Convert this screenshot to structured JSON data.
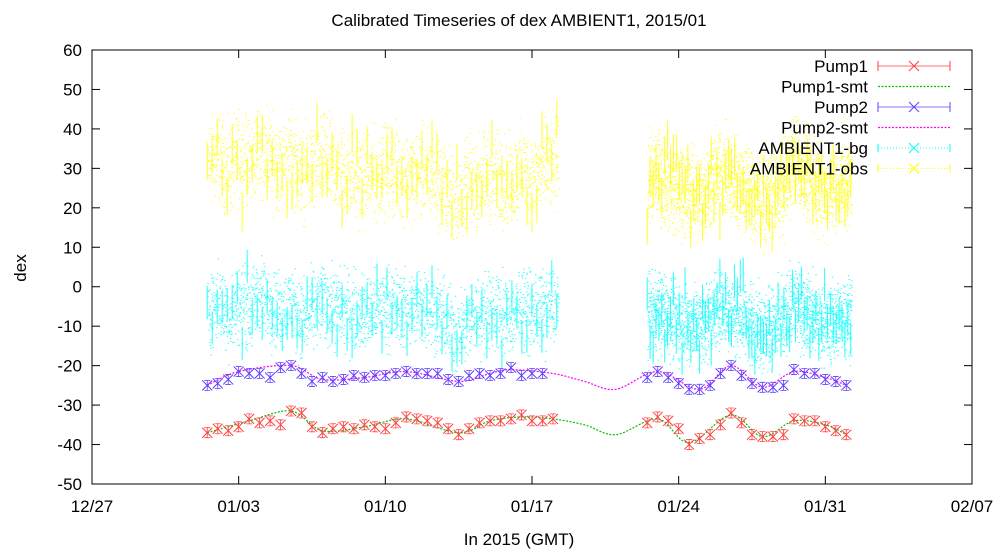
{
  "chart_data": {
    "type": "line",
    "title": "Calibrated Timeseries of dex AMBIENT1, 2015/01",
    "xlabel": "In 2015 (GMT)",
    "ylabel": "dex",
    "xlim": [
      "2014-12-27",
      "2015-02-07"
    ],
    "ylim": [
      -50,
      60
    ],
    "x_ticks": [
      "12/27",
      "01/03",
      "01/10",
      "01/17",
      "01/24",
      "01/31",
      "02/07"
    ],
    "y_ticks": [
      "60",
      "50",
      "40",
      "30",
      "20",
      "10",
      "0",
      "-10",
      "-20",
      "-30",
      "-40",
      "-50"
    ],
    "legend_position": "top-right",
    "colors": {
      "pump1": "#ff4040",
      "pump1_smt": "#00c000",
      "pump2": "#6040ff",
      "pump2_smt": "#ff00ff",
      "ambient_bg": "#00ffff",
      "ambient_obs": "#ffff00"
    },
    "series": [
      {
        "name": "Pump1",
        "style": "points-errorbars",
        "points": [
          [
            "2015-01-01T12",
            -37
          ],
          [
            "2015-01-02",
            -36
          ],
          [
            "2015-01-02T12",
            -36.5
          ],
          [
            "2015-01-03",
            -35.5
          ],
          [
            "2015-01-03T12",
            -33.5
          ],
          [
            "2015-01-04",
            -34.5
          ],
          [
            "2015-01-04T12",
            -34
          ],
          [
            "2015-01-05",
            -35
          ],
          [
            "2015-01-05T12",
            -31.5
          ],
          [
            "2015-01-06",
            -32
          ],
          [
            "2015-01-06T12",
            -35.5
          ],
          [
            "2015-01-07",
            -37
          ],
          [
            "2015-01-07T12",
            -36
          ],
          [
            "2015-01-08",
            -35.5
          ],
          [
            "2015-01-08T12",
            -36
          ],
          [
            "2015-01-09",
            -35
          ],
          [
            "2015-01-09T12",
            -35.5
          ],
          [
            "2015-01-10",
            -36
          ],
          [
            "2015-01-10T12",
            -34.5
          ],
          [
            "2015-01-11",
            -33
          ],
          [
            "2015-01-11T12",
            -33.5
          ],
          [
            "2015-01-12",
            -34
          ],
          [
            "2015-01-12T12",
            -34.5
          ],
          [
            "2015-01-13",
            -36
          ],
          [
            "2015-01-13T12",
            -37.5
          ],
          [
            "2015-01-14",
            -36
          ],
          [
            "2015-01-14T12",
            -34.5
          ],
          [
            "2015-01-15",
            -34
          ],
          [
            "2015-01-15T12",
            -34
          ],
          [
            "2015-01-16",
            -33.5
          ],
          [
            "2015-01-16T12",
            -32.5
          ],
          [
            "2015-01-17",
            -34
          ],
          [
            "2015-01-17T12",
            -34
          ],
          [
            "2015-01-18",
            -33.5
          ],
          [
            "2015-01-22T12",
            -34.5
          ],
          [
            "2015-01-23",
            -33
          ],
          [
            "2015-01-23T12",
            -34
          ],
          [
            "2015-01-24",
            -36
          ],
          [
            "2015-01-24T12",
            -40
          ],
          [
            "2015-01-25",
            -38.5
          ],
          [
            "2015-01-25T12",
            -37.5
          ],
          [
            "2015-01-26",
            -35
          ],
          [
            "2015-01-26T12",
            -32
          ],
          [
            "2015-01-27",
            -34.5
          ],
          [
            "2015-01-27T12",
            -37.5
          ],
          [
            "2015-01-28",
            -38
          ],
          [
            "2015-01-28T12",
            -38
          ],
          [
            "2015-01-29",
            -37.5
          ],
          [
            "2015-01-29T12",
            -33.5
          ],
          [
            "2015-01-30",
            -34
          ],
          [
            "2015-01-30T12",
            -34
          ],
          [
            "2015-01-31",
            -35.5
          ],
          [
            "2015-01-31T12",
            -36.5
          ],
          [
            "2015-02-01",
            -37.5
          ]
        ]
      },
      {
        "name": "Pump1-smt",
        "style": "line",
        "points": [
          [
            "2015-01-01T12",
            -37
          ],
          [
            "2015-01-03T12",
            -34
          ],
          [
            "2015-01-05T12",
            -31.5
          ],
          [
            "2015-01-07",
            -36.5
          ],
          [
            "2015-01-09",
            -35.5
          ],
          [
            "2015-01-11",
            -33.5
          ],
          [
            "2015-01-13T12",
            -37
          ],
          [
            "2015-01-15",
            -34
          ],
          [
            "2015-01-16T12",
            -33
          ],
          [
            "2015-01-18",
            -33.5
          ],
          [
            "2015-01-19T12",
            -35
          ],
          [
            "2015-01-21",
            -37.5
          ],
          [
            "2015-01-23",
            -33.5
          ],
          [
            "2015-01-24T12",
            -39.5
          ],
          [
            "2015-01-26T12",
            -32.5
          ],
          [
            "2015-01-28",
            -38
          ],
          [
            "2015-01-29T12",
            -34
          ],
          [
            "2015-01-31",
            -35
          ],
          [
            "2015-02-01",
            -37.5
          ]
        ]
      },
      {
        "name": "Pump2",
        "style": "points-errorbars",
        "points": [
          [
            "2015-01-01T12",
            -25
          ],
          [
            "2015-01-02",
            -24.5
          ],
          [
            "2015-01-02T12",
            -23.5
          ],
          [
            "2015-01-03",
            -21.5
          ],
          [
            "2015-01-03T12",
            -22
          ],
          [
            "2015-01-04",
            -22
          ],
          [
            "2015-01-04T12",
            -23
          ],
          [
            "2015-01-05",
            -20.5
          ],
          [
            "2015-01-05T12",
            -20
          ],
          [
            "2015-01-06",
            -22
          ],
          [
            "2015-01-06T12",
            -24
          ],
          [
            "2015-01-07",
            -23
          ],
          [
            "2015-01-07T12",
            -24
          ],
          [
            "2015-01-08",
            -23.5
          ],
          [
            "2015-01-08T12",
            -22.5
          ],
          [
            "2015-01-09",
            -23
          ],
          [
            "2015-01-09T12",
            -22.5
          ],
          [
            "2015-01-10",
            -22.5
          ],
          [
            "2015-01-10T12",
            -22
          ],
          [
            "2015-01-11",
            -21.5
          ],
          [
            "2015-01-11T12",
            -22
          ],
          [
            "2015-01-12",
            -22
          ],
          [
            "2015-01-12T12",
            -22
          ],
          [
            "2015-01-13",
            -23.5
          ],
          [
            "2015-01-13T12",
            -24
          ],
          [
            "2015-01-14",
            -22.5
          ],
          [
            "2015-01-14T12",
            -22
          ],
          [
            "2015-01-15",
            -22.5
          ],
          [
            "2015-01-15T12",
            -22
          ],
          [
            "2015-01-16",
            -20.5
          ],
          [
            "2015-01-16T12",
            -22.5
          ],
          [
            "2015-01-17",
            -22
          ],
          [
            "2015-01-17T12",
            -22
          ],
          [
            "2015-01-22T12",
            -23
          ],
          [
            "2015-01-23",
            -21.5
          ],
          [
            "2015-01-23T12",
            -23
          ],
          [
            "2015-01-24",
            -24.5
          ],
          [
            "2015-01-24T12",
            -26
          ],
          [
            "2015-01-25",
            -26
          ],
          [
            "2015-01-25T12",
            -25
          ],
          [
            "2015-01-26",
            -22
          ],
          [
            "2015-01-26T12",
            -20
          ],
          [
            "2015-01-27",
            -22.5
          ],
          [
            "2015-01-27T12",
            -24.5
          ],
          [
            "2015-01-28",
            -25.5
          ],
          [
            "2015-01-28T12",
            -25.5
          ],
          [
            "2015-01-29",
            -25
          ],
          [
            "2015-01-29T12",
            -21
          ],
          [
            "2015-01-30",
            -22
          ],
          [
            "2015-01-30T12",
            -22
          ],
          [
            "2015-01-31",
            -23.5
          ],
          [
            "2015-01-31T12",
            -24
          ],
          [
            "2015-02-01",
            -25
          ]
        ]
      },
      {
        "name": "Pump2-smt",
        "style": "line",
        "points": [
          [
            "2015-01-01T12",
            -25
          ],
          [
            "2015-01-03",
            -21.5
          ],
          [
            "2015-01-05T12",
            -20
          ],
          [
            "2015-01-07",
            -23.5
          ],
          [
            "2015-01-09",
            -23
          ],
          [
            "2015-01-11",
            -21.5
          ],
          [
            "2015-01-13T12",
            -24
          ],
          [
            "2015-01-15",
            -22
          ],
          [
            "2015-01-16",
            -21
          ],
          [
            "2015-01-18",
            -22
          ],
          [
            "2015-01-19T12",
            -24
          ],
          [
            "2015-01-21",
            -26
          ],
          [
            "2015-01-23",
            -21.5
          ],
          [
            "2015-01-25",
            -26
          ],
          [
            "2015-01-26T12",
            -20
          ],
          [
            "2015-01-28",
            -25.5
          ],
          [
            "2015-01-29T12",
            -21.5
          ],
          [
            "2015-01-31",
            -23
          ],
          [
            "2015-02-01",
            -25
          ]
        ]
      },
      {
        "name": "AMBIENT1-bg",
        "style": "dense-points",
        "segments": [
          [
            "2015-01-01T12",
            "2015-01-18T06"
          ],
          [
            "2015-01-22T12",
            "2015-02-01T06"
          ]
        ],
        "envelope": [
          [
            "2015-01-01T12",
            -6
          ],
          [
            "2015-01-02",
            -4
          ],
          [
            "2015-01-02T12",
            -8
          ],
          [
            "2015-01-03",
            -4
          ],
          [
            "2015-01-03T12",
            -6
          ],
          [
            "2015-01-04",
            -2
          ],
          [
            "2015-01-04T12",
            -5
          ],
          [
            "2015-01-05",
            -6
          ],
          [
            "2015-01-05T12",
            -4
          ],
          [
            "2015-01-06",
            -9
          ],
          [
            "2015-01-06T12",
            -6
          ],
          [
            "2015-01-07",
            -4
          ],
          [
            "2015-01-08",
            -6
          ],
          [
            "2015-01-09",
            -7
          ],
          [
            "2015-01-10",
            -5
          ],
          [
            "2015-01-11",
            -6
          ],
          [
            "2015-01-12",
            -5
          ],
          [
            "2015-01-12T12",
            -7
          ],
          [
            "2015-01-13",
            -10
          ],
          [
            "2015-01-13T12",
            -12
          ],
          [
            "2015-01-14",
            -8
          ],
          [
            "2015-01-15",
            -6
          ],
          [
            "2015-01-16",
            -8
          ],
          [
            "2015-01-16T12",
            -4
          ],
          [
            "2015-01-17",
            -7
          ],
          [
            "2015-01-17T12",
            -6
          ],
          [
            "2015-01-18",
            -5
          ],
          [
            "2015-01-22T12",
            -8
          ],
          [
            "2015-01-23",
            -6
          ],
          [
            "2015-01-24",
            -9
          ],
          [
            "2015-01-25",
            -10
          ],
          [
            "2015-01-26",
            -5
          ],
          [
            "2015-01-27",
            -8
          ],
          [
            "2015-01-28",
            -11
          ],
          [
            "2015-01-29",
            -9
          ],
          [
            "2015-01-29T12",
            -4
          ],
          [
            "2015-01-30",
            -6
          ],
          [
            "2015-01-31",
            -10
          ],
          [
            "2015-02-01",
            -7
          ]
        ],
        "spread": 7
      },
      {
        "name": "AMBIENT1-obs",
        "style": "dense-points",
        "segments": [
          [
            "2015-01-01T12",
            "2015-01-18T06"
          ],
          [
            "2015-01-22T12",
            "2015-02-01T06"
          ]
        ],
        "envelope": [
          [
            "2015-01-01T12",
            31
          ],
          [
            "2015-01-02",
            33
          ],
          [
            "2015-01-02T12",
            29
          ],
          [
            "2015-01-03",
            33
          ],
          [
            "2015-01-03T12",
            31
          ],
          [
            "2015-01-04",
            36
          ],
          [
            "2015-01-04T12",
            32
          ],
          [
            "2015-01-05",
            30
          ],
          [
            "2015-01-05T12",
            33
          ],
          [
            "2015-01-06",
            28
          ],
          [
            "2015-01-06T12",
            30
          ],
          [
            "2015-01-07",
            32
          ],
          [
            "2015-01-08",
            29
          ],
          [
            "2015-01-09",
            27
          ],
          [
            "2015-01-10",
            30
          ],
          [
            "2015-01-11",
            28
          ],
          [
            "2015-01-12",
            29
          ],
          [
            "2015-01-12T12",
            27
          ],
          [
            "2015-01-13",
            24
          ],
          [
            "2015-01-13T12",
            22
          ],
          [
            "2015-01-14",
            26
          ],
          [
            "2015-01-15",
            28
          ],
          [
            "2015-01-16",
            26
          ],
          [
            "2015-01-16T12",
            30
          ],
          [
            "2015-01-17",
            27
          ],
          [
            "2015-01-17T12",
            30
          ],
          [
            "2015-01-18",
            31
          ],
          [
            "2015-01-22T12",
            27
          ],
          [
            "2015-01-23",
            28
          ],
          [
            "2015-01-24",
            24
          ],
          [
            "2015-01-25",
            23
          ],
          [
            "2015-01-26",
            29
          ],
          [
            "2015-01-27",
            26
          ],
          [
            "2015-01-28",
            22
          ],
          [
            "2015-01-29",
            25
          ],
          [
            "2015-01-29T12",
            33
          ],
          [
            "2015-01-30",
            28
          ],
          [
            "2015-01-31",
            24
          ],
          [
            "2015-02-01",
            27
          ]
        ],
        "spread": 8
      }
    ]
  }
}
